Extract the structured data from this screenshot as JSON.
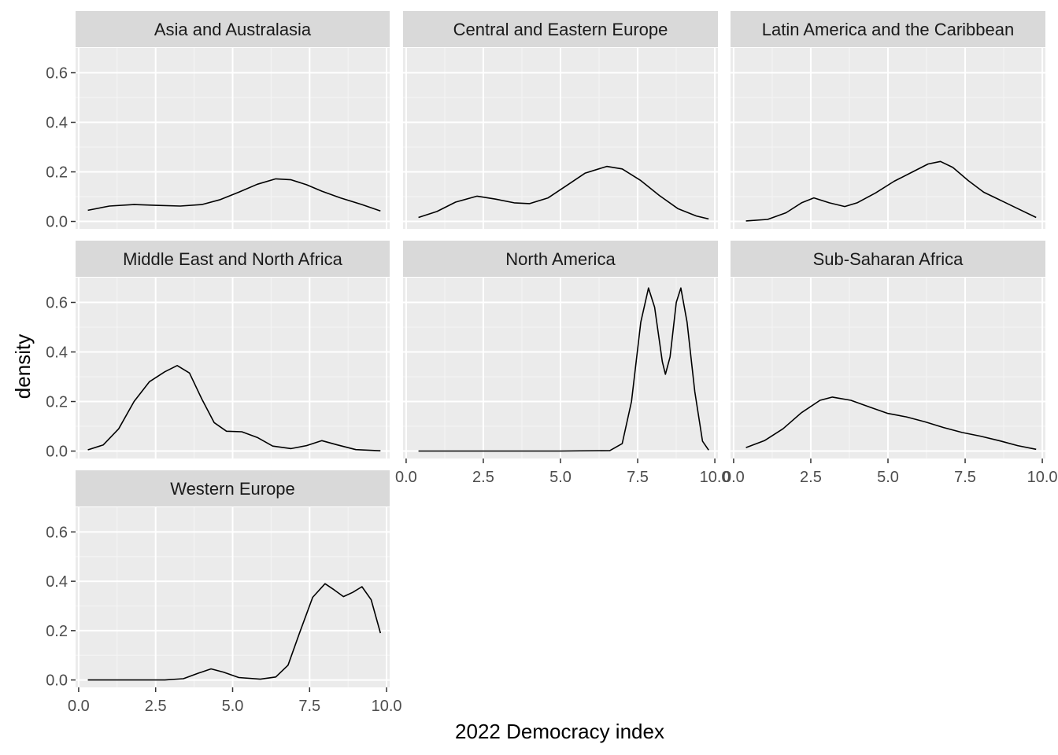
{
  "chart_data": {
    "type": "line",
    "subtype": "faceted-density",
    "xlabel": "2022 Democracy index",
    "ylabel": "density",
    "xlim": [
      0,
      10
    ],
    "ylim": [
      0,
      0.7
    ],
    "x_ticks": [
      0,
      2.5,
      5,
      7.5,
      10
    ],
    "x_tick_labels": [
      "0.0",
      "2.5",
      "5.0",
      "7.5",
      "10.0"
    ],
    "y_ticks": [
      0,
      0.2,
      0.4,
      0.6
    ],
    "y_tick_labels": [
      "0.0",
      "0.2",
      "0.4",
      "0.6"
    ],
    "grid": true,
    "facets": [
      {
        "title": "Asia and Australasia",
        "points": [
          [
            0.3,
            0.045
          ],
          [
            1,
            0.062
          ],
          [
            1.8,
            0.068
          ],
          [
            2.5,
            0.065
          ],
          [
            3.3,
            0.062
          ],
          [
            4,
            0.068
          ],
          [
            4.6,
            0.088
          ],
          [
            5.2,
            0.118
          ],
          [
            5.8,
            0.15
          ],
          [
            6.4,
            0.172
          ],
          [
            6.9,
            0.168
          ],
          [
            7.4,
            0.148
          ],
          [
            7.9,
            0.122
          ],
          [
            8.5,
            0.095
          ],
          [
            9.2,
            0.068
          ],
          [
            9.8,
            0.042
          ]
        ]
      },
      {
        "title": "Central and Eastern Europe",
        "points": [
          [
            0.4,
            0.016
          ],
          [
            1,
            0.04
          ],
          [
            1.6,
            0.078
          ],
          [
            2.3,
            0.102
          ],
          [
            2.9,
            0.09
          ],
          [
            3.5,
            0.075
          ],
          [
            4,
            0.072
          ],
          [
            4.6,
            0.095
          ],
          [
            5.2,
            0.145
          ],
          [
            5.8,
            0.195
          ],
          [
            6.5,
            0.222
          ],
          [
            7,
            0.212
          ],
          [
            7.6,
            0.165
          ],
          [
            8.2,
            0.105
          ],
          [
            8.8,
            0.052
          ],
          [
            9.4,
            0.022
          ],
          [
            9.8,
            0.01
          ]
        ]
      },
      {
        "title": "Latin America and the Caribbean",
        "points": [
          [
            0.4,
            0.002
          ],
          [
            1.1,
            0.008
          ],
          [
            1.7,
            0.035
          ],
          [
            2.2,
            0.075
          ],
          [
            2.6,
            0.095
          ],
          [
            3.1,
            0.075
          ],
          [
            3.6,
            0.06
          ],
          [
            4,
            0.075
          ],
          [
            4.6,
            0.115
          ],
          [
            5.2,
            0.162
          ],
          [
            5.8,
            0.2
          ],
          [
            6.3,
            0.232
          ],
          [
            6.7,
            0.242
          ],
          [
            7.1,
            0.218
          ],
          [
            7.6,
            0.165
          ],
          [
            8.1,
            0.118
          ],
          [
            8.7,
            0.082
          ],
          [
            9.2,
            0.052
          ],
          [
            9.8,
            0.016
          ]
        ]
      },
      {
        "title": "Middle East and North Africa",
        "points": [
          [
            0.3,
            0.005
          ],
          [
            0.8,
            0.025
          ],
          [
            1.3,
            0.09
          ],
          [
            1.8,
            0.2
          ],
          [
            2.3,
            0.28
          ],
          [
            2.8,
            0.32
          ],
          [
            3.2,
            0.345
          ],
          [
            3.6,
            0.315
          ],
          [
            4,
            0.21
          ],
          [
            4.4,
            0.115
          ],
          [
            4.8,
            0.08
          ],
          [
            5.3,
            0.078
          ],
          [
            5.8,
            0.055
          ],
          [
            6.3,
            0.02
          ],
          [
            6.9,
            0.01
          ],
          [
            7.4,
            0.022
          ],
          [
            7.9,
            0.042
          ],
          [
            8.4,
            0.025
          ],
          [
            9,
            0.006
          ],
          [
            9.8,
            0.001
          ]
        ]
      },
      {
        "title": "North America",
        "points": [
          [
            0.4,
            0
          ],
          [
            5,
            0
          ],
          [
            6.6,
            0.002
          ],
          [
            7,
            0.03
          ],
          [
            7.3,
            0.2
          ],
          [
            7.6,
            0.52
          ],
          [
            7.85,
            0.658
          ],
          [
            8.05,
            0.58
          ],
          [
            8.3,
            0.36
          ],
          [
            8.4,
            0.31
          ],
          [
            8.55,
            0.38
          ],
          [
            8.75,
            0.6
          ],
          [
            8.9,
            0.658
          ],
          [
            9.1,
            0.52
          ],
          [
            9.35,
            0.24
          ],
          [
            9.6,
            0.04
          ],
          [
            9.8,
            0.004
          ]
        ]
      },
      {
        "title": "Sub-Saharan Africa",
        "points": [
          [
            0.4,
            0.014
          ],
          [
            1,
            0.042
          ],
          [
            1.6,
            0.09
          ],
          [
            2.2,
            0.155
          ],
          [
            2.8,
            0.205
          ],
          [
            3.2,
            0.218
          ],
          [
            3.8,
            0.205
          ],
          [
            4.4,
            0.178
          ],
          [
            5,
            0.152
          ],
          [
            5.6,
            0.138
          ],
          [
            6.2,
            0.118
          ],
          [
            6.8,
            0.095
          ],
          [
            7.4,
            0.075
          ],
          [
            8,
            0.06
          ],
          [
            8.6,
            0.042
          ],
          [
            9.2,
            0.022
          ],
          [
            9.8,
            0.007
          ]
        ]
      },
      {
        "title": "Western Europe",
        "points": [
          [
            0.3,
            0
          ],
          [
            2.8,
            0
          ],
          [
            3.4,
            0.005
          ],
          [
            3.9,
            0.028
          ],
          [
            4.3,
            0.045
          ],
          [
            4.7,
            0.032
          ],
          [
            5.2,
            0.01
          ],
          [
            5.9,
            0.003
          ],
          [
            6.4,
            0.012
          ],
          [
            6.8,
            0.06
          ],
          [
            7.2,
            0.2
          ],
          [
            7.6,
            0.335
          ],
          [
            8,
            0.39
          ],
          [
            8.3,
            0.365
          ],
          [
            8.6,
            0.338
          ],
          [
            8.9,
            0.355
          ],
          [
            9.2,
            0.378
          ],
          [
            9.5,
            0.325
          ],
          [
            9.8,
            0.19
          ]
        ]
      }
    ]
  }
}
